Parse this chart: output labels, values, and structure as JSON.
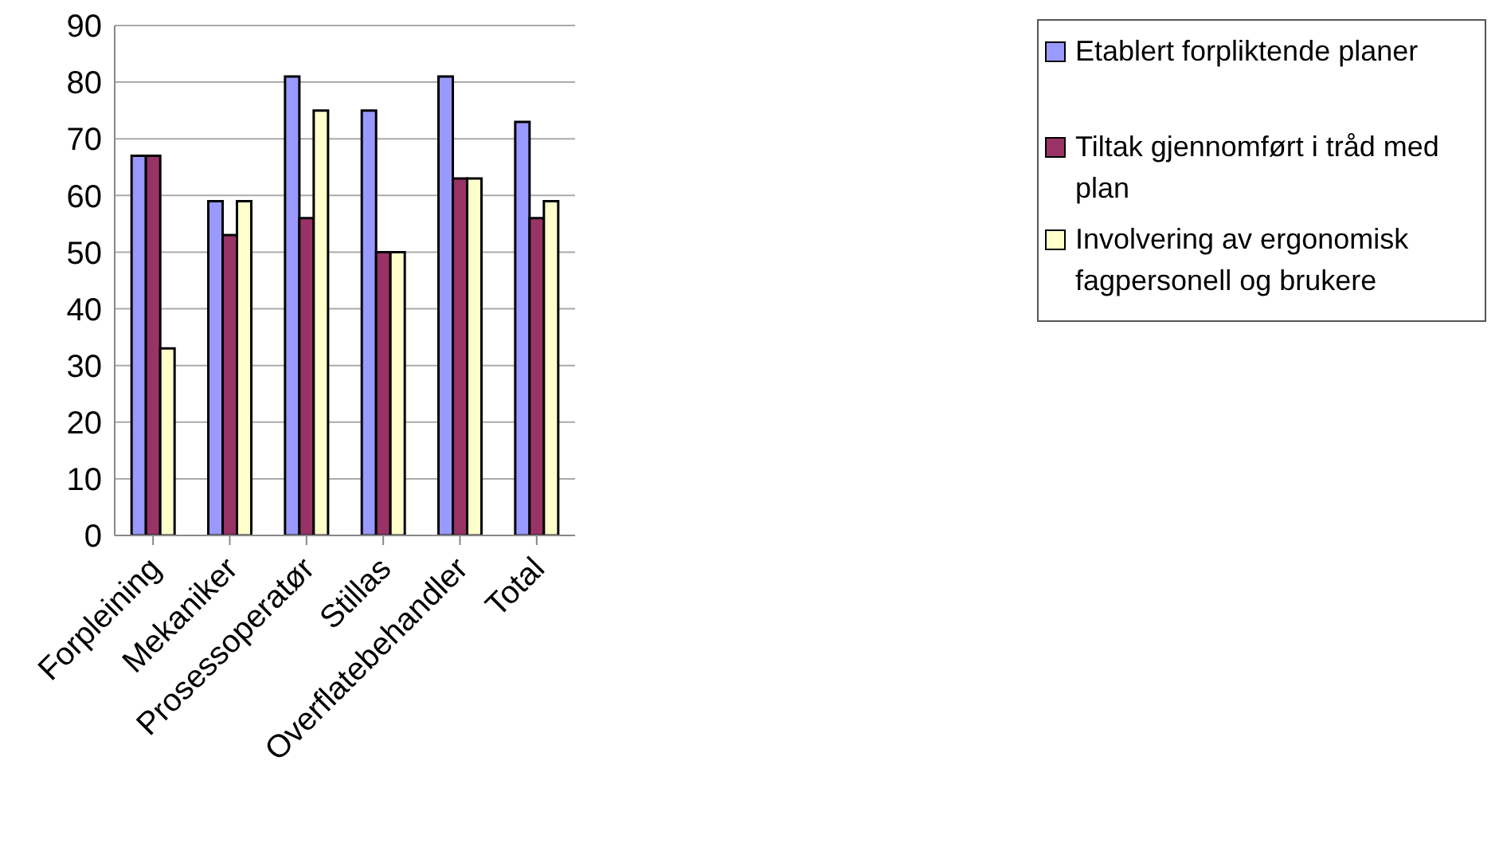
{
  "chart_data": {
    "type": "bar",
    "categories": [
      "Forpleining",
      "Mekaniker",
      "Prosessoperatør",
      "Stillas",
      "Overflatebehandler",
      "Total"
    ],
    "series": [
      {
        "name": "Etablert forpliktende planer",
        "color": "#9999ff",
        "values": [
          67,
          59,
          81,
          75,
          81,
          73
        ]
      },
      {
        "name": "Tiltak gjennomført i tråd med plan",
        "color": "#993366",
        "values": [
          67,
          53,
          56,
          50,
          63,
          56
        ]
      },
      {
        "name": "Involvering av ergonomisk fagpersonell og brukere",
        "color": "#ffffcc",
        "values": [
          33,
          59,
          75,
          50,
          63,
          59
        ]
      }
    ],
    "ylim": [
      0,
      90
    ],
    "yticks": [
      0,
      10,
      20,
      30,
      40,
      50,
      60,
      70,
      80,
      90
    ],
    "grid": "y",
    "legend": "top right"
  }
}
